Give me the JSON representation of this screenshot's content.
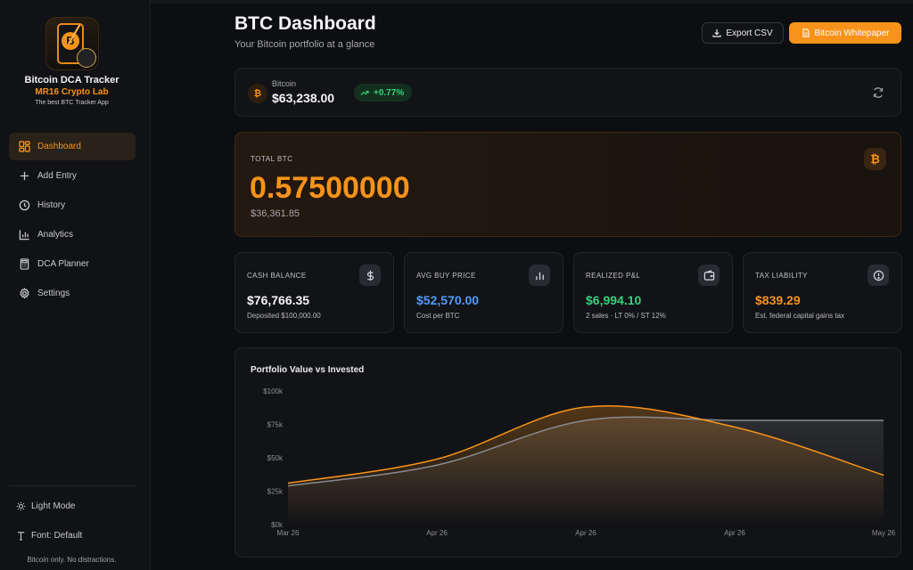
{
  "app": {
    "name": "Bitcoin DCA Tracker",
    "studio": "MR16 Crypto Lab",
    "tagline": "The best BTC Tracker App"
  },
  "sidebar": {
    "items": [
      {
        "label": "Dashboard",
        "icon": "dashboard-icon",
        "active": true
      },
      {
        "label": "Add Entry",
        "icon": "plus-icon",
        "active": false
      },
      {
        "label": "History",
        "icon": "clock-icon",
        "active": false
      },
      {
        "label": "Analytics",
        "icon": "bar-chart-icon",
        "active": false
      },
      {
        "label": "DCA Planner",
        "icon": "calculator-icon",
        "active": false
      },
      {
        "label": "Settings",
        "icon": "gear-icon",
        "active": false
      }
    ],
    "theme_toggle": "Light Mode",
    "font_setting": "Font: Default",
    "footer": "Bitcoin only. No distractions."
  },
  "header": {
    "title": "BTC Dashboard",
    "subtitle": "Your Bitcoin portfolio at a glance",
    "export_label": "Export CSV",
    "whitepaper_label": "Bitcoin Whitepaper"
  },
  "price": {
    "label": "Bitcoin",
    "value": "$63,238.00",
    "change": "+0.77%"
  },
  "total": {
    "label": "TOTAL BTC",
    "value": "0.57500000",
    "usd": "$36,361.85"
  },
  "stats": [
    {
      "label": "CASH BALANCE",
      "value": "$76,766.35",
      "sub": "Deposited $100,000.00",
      "color": "#f4f4f6",
      "icon": "dollar-icon"
    },
    {
      "label": "AVG BUY PRICE",
      "value": "$52,570.00",
      "sub": "Cost per BTC",
      "color": "#4f9cf7",
      "icon": "bar-chart-icon"
    },
    {
      "label": "REALIZED P&L",
      "value": "$6,994.10",
      "sub": "2 sales · LT 0% / ST 12%",
      "color": "#36d27a",
      "icon": "wallet-icon"
    },
    {
      "label": "TAX LIABILITY",
      "value": "$839.29",
      "sub": "Est. federal capital gains tax",
      "color": "#f7931a",
      "icon": "alert-circle-icon"
    }
  ],
  "colors": {
    "accent": "#f7931a",
    "invested_line": "#8a8b90",
    "positive": "#36d27a",
    "info": "#4f9cf7"
  },
  "chart_data": {
    "type": "area",
    "title": "Portfolio Value vs Invested",
    "x": [
      "Mar 26",
      "Apr 26",
      "Apr 26",
      "Apr 26",
      "May 26"
    ],
    "y_ticks": [
      "$100k",
      "$75k",
      "$50k",
      "$25k",
      "$0k"
    ],
    "ylim": [
      0,
      100000
    ],
    "grid": false,
    "series": [
      {
        "key": "value",
        "values": [
          31000,
          49000,
          88000,
          73000,
          37000
        ]
      },
      {
        "key": "invested",
        "values": [
          29000,
          44500,
          78000,
          78000,
          78000
        ]
      }
    ]
  }
}
